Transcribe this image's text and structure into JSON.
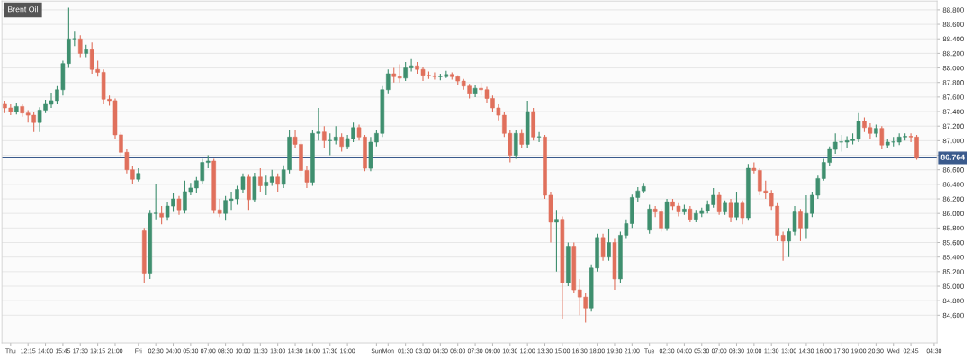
{
  "chart_data": {
    "type": "candlestick",
    "title": "Brent Oil",
    "categories": [
      null,
      "Thu",
      null,
      null,
      "12:15",
      null,
      null,
      "14:00",
      null,
      null,
      "15:45",
      null,
      null,
      "17:30",
      null,
      null,
      "19:15",
      null,
      null,
      "21:00",
      null,
      null,
      null,
      "Fri",
      null,
      null,
      "02:30",
      null,
      null,
      "04:00",
      null,
      null,
      "05:30",
      null,
      null,
      "07:00",
      null,
      null,
      "08:30",
      null,
      null,
      "10:00",
      null,
      null,
      "11:30",
      null,
      null,
      "13:00",
      null,
      null,
      "14:30",
      null,
      null,
      "16:00",
      null,
      null,
      "17:30",
      null,
      null,
      "19:00",
      null,
      null,
      null,
      null,
      "Sun",
      null,
      "Mon",
      null,
      null,
      "01:30",
      null,
      null,
      "03:00",
      null,
      null,
      "04:30",
      null,
      null,
      "06:00",
      null,
      null,
      "07:30",
      null,
      null,
      "09:00",
      null,
      null,
      "10:30",
      null,
      null,
      "12:00",
      null,
      null,
      "13:30",
      null,
      null,
      "15:00",
      null,
      null,
      "16:30",
      null,
      null,
      "18:00",
      null,
      null,
      "19:30",
      null,
      null,
      "21:00",
      null,
      null,
      "Tue",
      null,
      null,
      "02:30",
      null,
      null,
      "04:00",
      null,
      null,
      "05:30",
      null,
      null,
      "07:00",
      null,
      null,
      "08:30",
      null,
      null,
      "10:00",
      null,
      null,
      "11:30",
      null,
      null,
      "13:00",
      null,
      null,
      "14:30",
      null,
      null,
      "16:00",
      null,
      null,
      "17:30",
      null,
      null,
      "19:00",
      null,
      null,
      "20:30",
      null,
      null,
      "Wed",
      null,
      null,
      "02:45",
      null,
      null,
      null,
      "04:30"
    ],
    "ohlc": [
      [
        87.5,
        87.55,
        87.38,
        87.45
      ],
      [
        87.45,
        87.5,
        87.35,
        87.4
      ],
      [
        87.4,
        87.52,
        87.36,
        87.47
      ],
      [
        87.47,
        87.5,
        87.33,
        87.38
      ],
      [
        87.38,
        87.42,
        87.25,
        87.35
      ],
      [
        87.35,
        87.4,
        87.12,
        87.25
      ],
      [
        87.25,
        87.46,
        87.12,
        87.42
      ],
      [
        87.42,
        87.56,
        87.38,
        87.5
      ],
      [
        87.5,
        87.66,
        87.45,
        87.55
      ],
      [
        87.55,
        87.75,
        87.5,
        87.7
      ],
      [
        87.7,
        88.1,
        87.62,
        88.06
      ],
      [
        88.06,
        88.83,
        88.0,
        88.4
      ],
      [
        88.4,
        88.5,
        88.3,
        88.4
      ],
      [
        88.4,
        88.45,
        88.15,
        88.2
      ],
      [
        88.2,
        88.32,
        88.15,
        88.25
      ],
      [
        88.25,
        88.35,
        87.92,
        87.98
      ],
      [
        87.98,
        88.1,
        87.88,
        87.94
      ],
      [
        87.94,
        87.98,
        87.5,
        87.57
      ],
      [
        87.57,
        87.62,
        87.48,
        87.55
      ],
      [
        87.55,
        87.58,
        87.02,
        87.08
      ],
      [
        87.08,
        87.12,
        86.78,
        86.84
      ],
      [
        86.84,
        86.88,
        86.55,
        86.6
      ],
      [
        86.6,
        86.65,
        86.4,
        86.47
      ],
      [
        86.47,
        86.62,
        86.44,
        86.55
      ],
      [
        85.76,
        85.8,
        85.05,
        85.18
      ],
      [
        85.18,
        86.05,
        85.1,
        86.0
      ],
      [
        86.0,
        86.4,
        85.92,
        86.0
      ],
      [
        86.0,
        86.1,
        85.85,
        85.95
      ],
      [
        85.95,
        86.15,
        85.9,
        86.1
      ],
      [
        86.1,
        86.28,
        86.02,
        86.2
      ],
      [
        86.2,
        86.24,
        85.98,
        86.05
      ],
      [
        86.05,
        86.45,
        86.0,
        86.3
      ],
      [
        86.3,
        86.42,
        86.25,
        86.35
      ],
      [
        86.35,
        86.5,
        86.28,
        86.45
      ],
      [
        86.45,
        86.75,
        86.4,
        86.7
      ],
      [
        86.7,
        86.8,
        86.62,
        86.72
      ],
      [
        86.72,
        86.75,
        86.0,
        86.05
      ],
      [
        86.05,
        86.2,
        85.95,
        86.0
      ],
      [
        86.0,
        86.24,
        85.9,
        86.18
      ],
      [
        86.18,
        86.3,
        86.05,
        86.2
      ],
      [
        86.2,
        86.38,
        86.12,
        86.33
      ],
      [
        86.33,
        86.55,
        86.28,
        86.5
      ],
      [
        86.5,
        86.54,
        86.05,
        86.19
      ],
      [
        86.19,
        86.56,
        86.15,
        86.5
      ],
      [
        86.5,
        86.62,
        86.3,
        86.38
      ],
      [
        86.38,
        86.52,
        86.25,
        86.43
      ],
      [
        86.43,
        86.6,
        86.38,
        86.5
      ],
      [
        86.5,
        86.55,
        86.3,
        86.4
      ],
      [
        86.4,
        86.66,
        86.35,
        86.6
      ],
      [
        86.6,
        87.15,
        86.55,
        87.05
      ],
      [
        87.05,
        87.15,
        86.9,
        86.95
      ],
      [
        86.95,
        87.0,
        86.5,
        86.59
      ],
      [
        86.59,
        86.65,
        86.35,
        86.43
      ],
      [
        86.43,
        87.15,
        86.38,
        87.1
      ],
      [
        87.1,
        87.45,
        87.0,
        87.12
      ],
      [
        87.12,
        87.2,
        86.9,
        87.0
      ],
      [
        87.0,
        87.1,
        86.8,
        87.0
      ],
      [
        87.0,
        87.2,
        86.95,
        87.05
      ],
      [
        87.05,
        87.1,
        86.85,
        86.92
      ],
      [
        86.92,
        87.08,
        86.88,
        87.03
      ],
      [
        87.03,
        87.25,
        86.98,
        87.18
      ],
      [
        87.18,
        87.22,
        87.0,
        87.05
      ],
      [
        87.05,
        87.08,
        86.58,
        86.62
      ],
      [
        86.62,
        87.05,
        86.58,
        86.98
      ],
      [
        86.98,
        87.15,
        86.92,
        87.1
      ],
      [
        87.1,
        87.75,
        87.05,
        87.7
      ],
      [
        87.7,
        87.98,
        87.65,
        87.92
      ],
      [
        87.92,
        88.0,
        87.8,
        87.88
      ],
      [
        87.88,
        88.05,
        87.8,
        87.86
      ],
      [
        87.86,
        88.08,
        87.82,
        88.0
      ],
      [
        88.0,
        88.12,
        87.95,
        88.03
      ],
      [
        88.03,
        88.08,
        87.92,
        87.98
      ],
      [
        87.98,
        88.02,
        87.82,
        87.9
      ],
      [
        87.9,
        87.95,
        87.85,
        87.89
      ],
      [
        87.89,
        87.94,
        87.84,
        87.88
      ],
      [
        87.88,
        87.92,
        87.83,
        87.88
      ],
      [
        87.88,
        87.96,
        87.86,
        87.91
      ],
      [
        87.91,
        87.94,
        87.84,
        87.88
      ],
      [
        87.88,
        87.9,
        87.76,
        87.82
      ],
      [
        87.82,
        87.85,
        87.7,
        87.75
      ],
      [
        87.75,
        87.78,
        87.58,
        87.65
      ],
      [
        87.65,
        87.76,
        87.6,
        87.72
      ],
      [
        87.72,
        87.8,
        87.62,
        87.7
      ],
      [
        87.7,
        87.74,
        87.52,
        87.58
      ],
      [
        87.58,
        87.62,
        87.4,
        87.45
      ],
      [
        87.45,
        87.5,
        87.28,
        87.35
      ],
      [
        87.35,
        87.4,
        87.05,
        87.1
      ],
      [
        87.1,
        87.14,
        86.7,
        86.8
      ],
      [
        86.8,
        87.15,
        86.75,
        87.1
      ],
      [
        87.1,
        87.16,
        86.9,
        86.95
      ],
      [
        86.95,
        87.55,
        86.9,
        87.4
      ],
      [
        87.4,
        87.45,
        87.0,
        87.05
      ],
      [
        87.05,
        87.12,
        86.98,
        87.05
      ],
      [
        87.05,
        87.08,
        86.2,
        86.25
      ],
      [
        86.25,
        86.3,
        85.6,
        85.88
      ],
      [
        85.88,
        86.05,
        85.2,
        85.92
      ],
      [
        85.92,
        85.96,
        84.55,
        85.05
      ],
      [
        85.05,
        85.6,
        85.0,
        85.55
      ],
      [
        85.55,
        85.6,
        84.9,
        84.95
      ],
      [
        84.95,
        85.1,
        84.6,
        84.85
      ],
      [
        84.85,
        84.9,
        84.5,
        84.7
      ],
      [
        84.7,
        85.3,
        84.65,
        85.25
      ],
      [
        85.25,
        85.72,
        85.2,
        85.67
      ],
      [
        85.67,
        85.72,
        85.35,
        85.4
      ],
      [
        85.4,
        85.78,
        85.35,
        85.6
      ],
      [
        85.6,
        85.65,
        84.95,
        85.1
      ],
      [
        85.1,
        85.75,
        85.05,
        85.7
      ],
      [
        85.7,
        85.92,
        85.65,
        85.86
      ],
      [
        85.86,
        86.26,
        85.8,
        86.22
      ],
      [
        86.22,
        86.36,
        86.15,
        86.31
      ],
      [
        86.31,
        86.42,
        86.28,
        86.37
      ],
      [
        85.77,
        86.12,
        85.72,
        86.06
      ],
      [
        86.06,
        86.1,
        85.95,
        86.02
      ],
      [
        86.02,
        86.06,
        85.75,
        85.8
      ],
      [
        85.8,
        86.2,
        85.76,
        86.16
      ],
      [
        86.16,
        86.2,
        86.05,
        86.1
      ],
      [
        86.1,
        86.14,
        85.96,
        86.02
      ],
      [
        86.02,
        86.12,
        85.98,
        86.06
      ],
      [
        86.06,
        86.1,
        85.88,
        85.92
      ],
      [
        85.92,
        86.05,
        85.88,
        86.0
      ],
      [
        86.0,
        86.08,
        85.95,
        86.04
      ],
      [
        86.04,
        86.18,
        86.0,
        86.12
      ],
      [
        86.12,
        86.35,
        86.08,
        86.25
      ],
      [
        86.25,
        86.3,
        85.98,
        86.02
      ],
      [
        86.02,
        86.18,
        85.98,
        86.14
      ],
      [
        86.14,
        86.2,
        85.88,
        85.95
      ],
      [
        85.95,
        86.3,
        85.9,
        86.14
      ],
      [
        86.14,
        86.18,
        85.85,
        85.94
      ],
      [
        85.94,
        86.68,
        85.9,
        86.62
      ],
      [
        86.62,
        86.7,
        86.55,
        86.59
      ],
      [
        86.59,
        86.62,
        86.25,
        86.31
      ],
      [
        86.31,
        86.45,
        86.2,
        86.28
      ],
      [
        86.28,
        86.32,
        86.05,
        86.1
      ],
      [
        86.1,
        86.14,
        85.62,
        85.7
      ],
      [
        85.7,
        85.75,
        85.35,
        85.62
      ],
      [
        85.62,
        85.8,
        85.4,
        85.75
      ],
      [
        85.75,
        86.1,
        85.7,
        86.02
      ],
      [
        86.02,
        86.06,
        85.62,
        85.8
      ],
      [
        85.8,
        86.25,
        85.65,
        86.0
      ],
      [
        86.0,
        86.3,
        85.95,
        86.25
      ],
      [
        86.25,
        86.52,
        86.2,
        86.48
      ],
      [
        86.48,
        86.75,
        86.45,
        86.7
      ],
      [
        86.7,
        86.92,
        86.65,
        86.88
      ],
      [
        86.88,
        87.1,
        86.82,
        86.98
      ],
      [
        86.98,
        87.08,
        86.85,
        86.98
      ],
      [
        86.98,
        87.06,
        86.9,
        87.0
      ],
      [
        87.0,
        87.1,
        86.95,
        87.02
      ],
      [
        87.02,
        87.38,
        86.98,
        87.27
      ],
      [
        87.27,
        87.32,
        87.12,
        87.18
      ],
      [
        87.18,
        87.24,
        87.02,
        87.1
      ],
      [
        87.1,
        87.22,
        87.05,
        87.17
      ],
      [
        87.17,
        87.2,
        86.88,
        86.94
      ],
      [
        86.94,
        87.02,
        86.9,
        86.98
      ],
      [
        86.98,
        87.05,
        86.92,
        86.98
      ],
      [
        86.98,
        87.1,
        86.94,
        87.05
      ],
      [
        87.05,
        87.1,
        87.0,
        87.06
      ],
      [
        87.06,
        87.1,
        86.98,
        87.05
      ],
      [
        87.05,
        87.08,
        86.74,
        86.76
      ],
      null,
      null,
      null
    ],
    "colors": [
      "#e0705c",
      "#e0705c",
      "#3f8f6f",
      "#e0705c",
      "#e0705c",
      "#e0705c",
      "#3f8f6f",
      "#3f8f6f",
      "#3f8f6f",
      "#3f8f6f",
      "#3f8f6f",
      "#3f8f6f",
      "#3f8f6f",
      "#e0705c",
      "#3f8f6f",
      "#e0705c",
      "#e0705c",
      "#e0705c",
      "#e0705c",
      "#e0705c",
      "#e0705c",
      "#e0705c",
      "#e0705c",
      "#3f8f6f",
      "#e0705c",
      "#3f8f6f",
      "#3f8f6f",
      "#e0705c",
      "#3f8f6f",
      "#3f8f6f",
      "#e0705c",
      "#3f8f6f",
      "#3f8f6f",
      "#3f8f6f",
      "#3f8f6f",
      "#3f8f6f",
      "#e0705c",
      "#e0705c",
      "#3f8f6f",
      "#3f8f6f",
      "#3f8f6f",
      "#3f8f6f",
      "#e0705c",
      "#3f8f6f",
      "#e0705c",
      "#3f8f6f",
      "#3f8f6f",
      "#e0705c",
      "#3f8f6f",
      "#3f8f6f",
      "#e0705c",
      "#e0705c",
      "#e0705c",
      "#3f8f6f",
      "#3f8f6f",
      "#e0705c",
      "#3f8f6f",
      "#3f8f6f",
      "#e0705c",
      "#3f8f6f",
      "#3f8f6f",
      "#e0705c",
      "#e0705c",
      "#3f8f6f",
      "#3f8f6f",
      "#3f8f6f",
      "#3f8f6f",
      "#e0705c",
      "#e0705c",
      "#3f8f6f",
      "#3f8f6f",
      "#e0705c",
      "#e0705c",
      "#e0705c",
      "#e0705c",
      "#3f8f6f",
      "#3f8f6f",
      "#e0705c",
      "#e0705c",
      "#e0705c",
      "#e0705c",
      "#3f8f6f",
      "#e0705c",
      "#e0705c",
      "#e0705c",
      "#e0705c",
      "#e0705c",
      "#e0705c",
      "#3f8f6f",
      "#e0705c",
      "#3f8f6f",
      "#e0705c",
      "#3f8f6f",
      "#e0705c",
      "#e0705c",
      "#3f8f6f",
      "#e0705c",
      "#3f8f6f",
      "#e0705c",
      "#e0705c",
      "#e0705c",
      "#3f8f6f",
      "#3f8f6f",
      "#e0705c",
      "#3f8f6f",
      "#e0705c",
      "#3f8f6f",
      "#3f8f6f",
      "#3f8f6f",
      "#3f8f6f",
      "#3f8f6f",
      "#3f8f6f",
      "#e0705c",
      "#e0705c",
      "#3f8f6f",
      "#e0705c",
      "#e0705c",
      "#3f8f6f",
      "#e0705c",
      "#3f8f6f",
      "#3f8f6f",
      "#3f8f6f",
      "#3f8f6f",
      "#e0705c",
      "#3f8f6f",
      "#e0705c",
      "#3f8f6f",
      "#e0705c",
      "#3f8f6f",
      "#e0705c",
      "#e0705c",
      "#e0705c",
      "#e0705c",
      "#e0705c",
      "#e0705c",
      "#3f8f6f",
      "#3f8f6f",
      "#e0705c",
      "#3f8f6f",
      "#3f8f6f",
      "#3f8f6f",
      "#3f8f6f",
      "#3f8f6f",
      "#3f8f6f",
      "#3f8f6f",
      "#3f8f6f",
      "#3f8f6f",
      "#3f8f6f",
      "#e0705c",
      "#e0705c",
      "#3f8f6f",
      "#e0705c",
      "#3f8f6f",
      "#3f8f6f",
      "#3f8f6f",
      "#3f8f6f",
      "#e0705c",
      "#e0705c",
      null,
      null,
      null
    ],
    "ylim": [
      84.22,
      88.92
    ],
    "yticks": [
      {
        "value": 84.6,
        "label": "84.600"
      },
      {
        "value": 84.8,
        "label": "84.800"
      },
      {
        "value": 85.0,
        "label": "85.000"
      },
      {
        "value": 85.2,
        "label": "85.200"
      },
      {
        "value": 85.4,
        "label": "85.400"
      },
      {
        "value": 85.6,
        "label": "85.600"
      },
      {
        "value": 85.8,
        "label": "85.800"
      },
      {
        "value": 86.0,
        "label": "86.000"
      },
      {
        "value": 86.2,
        "label": "86.200"
      },
      {
        "value": 86.4,
        "label": "86.400"
      },
      {
        "value": 86.6,
        "label": "86.600"
      },
      {
        "value": 86.8,
        "label": null
      },
      {
        "value": 87.0,
        "label": "87.000"
      },
      {
        "value": 87.2,
        "label": "87.200"
      },
      {
        "value": 87.4,
        "label": "87.400"
      },
      {
        "value": 87.6,
        "label": "87.600"
      },
      {
        "value": 87.8,
        "label": "87.800"
      },
      {
        "value": 88.0,
        "label": "88.000"
      },
      {
        "value": 88.2,
        "label": "88.200"
      },
      {
        "value": 88.4,
        "label": "88.400"
      },
      {
        "value": 88.6,
        "label": "88.600"
      },
      {
        "value": 88.8,
        "label": "88.800"
      }
    ],
    "ref_lines": [
      {
        "axis": "y",
        "value": 86.764,
        "label": "86.764",
        "color": "#3a5a8c"
      }
    ],
    "grid": "y"
  }
}
